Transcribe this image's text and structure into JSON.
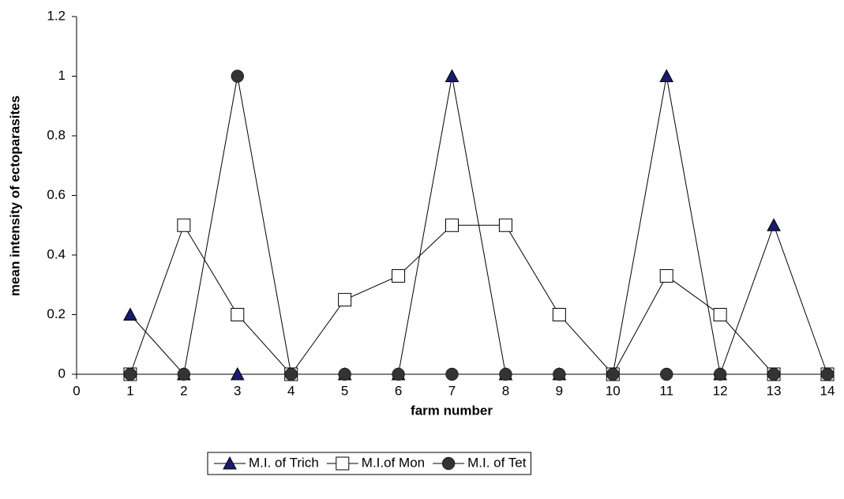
{
  "chart_data": {
    "type": "line",
    "x_label": "farm number",
    "y_label": "mean intensity of ectoparasites",
    "x": [
      1,
      2,
      3,
      4,
      5,
      6,
      7,
      8,
      9,
      10,
      11,
      12,
      13,
      14
    ],
    "series": [
      {
        "name": "M.I. of Trich",
        "color": "#1a1a6e",
        "marker": "triangle",
        "values": [
          0.2,
          0,
          0,
          0,
          0,
          0,
          1,
          0,
          0,
          0,
          1,
          0,
          0.5,
          0
        ]
      },
      {
        "name": "M.I.of Mon",
        "color": "#ffffff",
        "marker": "square",
        "values": [
          0,
          0.5,
          0.2,
          0,
          0.25,
          0.33,
          0.5,
          0.5,
          0.2,
          0,
          0.33,
          0.2,
          0,
          0
        ]
      },
      {
        "name": "M.I. of Tet",
        "color": "#333333",
        "marker": "circle",
        "values": [
          0,
          0,
          1,
          0,
          0,
          0,
          0,
          0,
          0,
          0,
          0,
          0,
          0,
          0
        ]
      }
    ],
    "xlim": [
      0,
      14
    ],
    "xticks": [
      0,
      1,
      2,
      3,
      4,
      5,
      6,
      7,
      8,
      9,
      10,
      11,
      12,
      13,
      14
    ],
    "ylim": [
      0,
      1.2
    ],
    "yticks": [
      0,
      0.2,
      0.4,
      0.6,
      0.8,
      1,
      1.2
    ],
    "grid": false,
    "legend": "bottom"
  }
}
